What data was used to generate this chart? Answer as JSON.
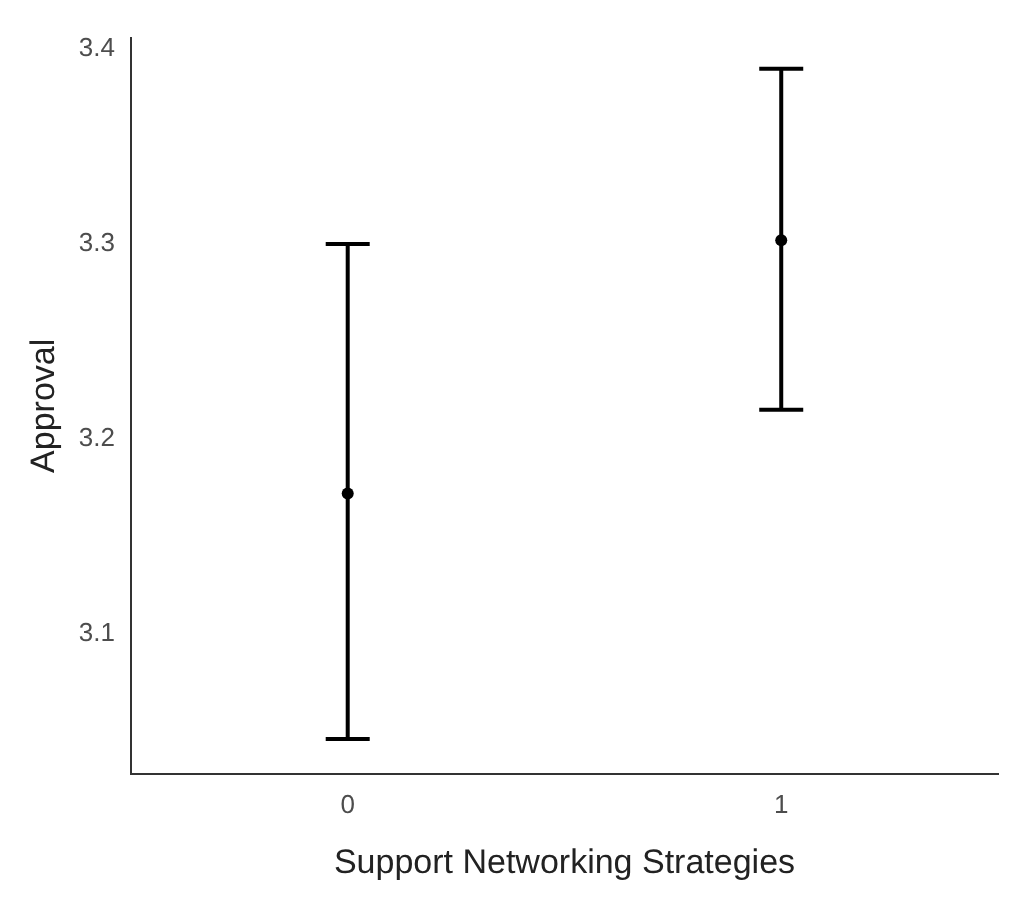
{
  "chart_data": {
    "type": "scatter",
    "xlabel": "Support Networking Strategies",
    "ylabel": "Approval",
    "categories": [
      "0",
      "1"
    ],
    "values": [
      3.172,
      3.302
    ],
    "errors": [
      [
        3.046,
        3.3
      ],
      [
        3.215,
        3.39
      ]
    ],
    "color": "#000000",
    "marker": "circle",
    "ylim": [
      3.028,
      3.406
    ],
    "yticks": [
      3.1,
      3.2,
      3.3,
      3.4
    ],
    "grid": false,
    "legend": false
  }
}
